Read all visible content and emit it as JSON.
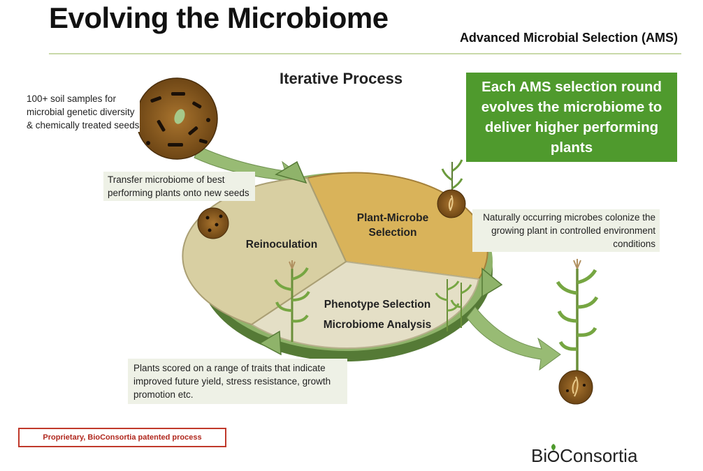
{
  "slide": {
    "title": "Evolving the Microbiome",
    "subtitle": "Advanced Microbial Selection (AMS)",
    "process_title": "Iterative Process"
  },
  "callouts": {
    "soil_samples": "100+ soil samples for microbial genetic diversity & chemically treated seeds",
    "transfer": "Transfer microbiome of best performing plants onto new seeds",
    "colonize": "Naturally occurring microbes colonize the growing plant in controlled environment conditions",
    "scored": "Plants scored on a range of traits that indicate improved future yield, stress resistance, growth promotion etc."
  },
  "segments": {
    "reinoculation": "Reinoculation",
    "plant_microbe_line1": "Plant-Microbe",
    "plant_microbe_line2": "Selection",
    "phenotype": "Phenotype Selection",
    "microbiome": "Microbiome Analysis"
  },
  "highlight_box": "Each AMS selection round evolves the microbiome to deliver higher performing plants",
  "proprietary_note": "Proprietary, BioConsortia patented process",
  "logo": {
    "part1": "Bi",
    "part2": "Consortia"
  },
  "colors": {
    "green_dark": "#4f9a2d",
    "ring_green": "#8fb36a",
    "segment_tan": "#d8cfa2",
    "segment_gold": "#d9b35a",
    "segment_light": "#e4dfc6"
  }
}
